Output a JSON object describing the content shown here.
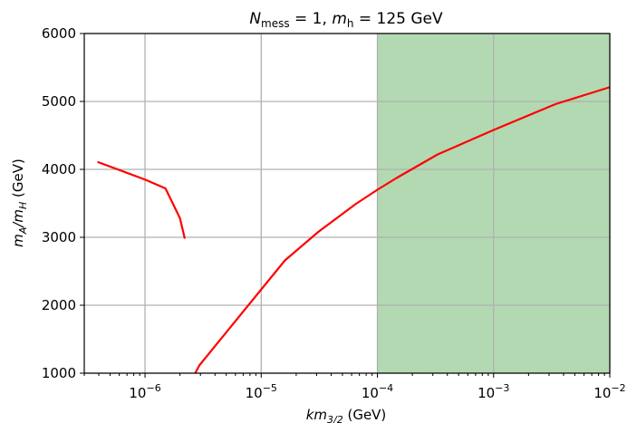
{
  "chart_data": {
    "type": "line",
    "title_parts": {
      "n": "N",
      "n_sub": "mess",
      "mid": " = 1, ",
      "m": "m",
      "m_sub": "h",
      "tail": " = 125 GeV"
    },
    "xlabel_parts": {
      "main": "km",
      "sub": "3/2",
      "unit": " (GeV)"
    },
    "ylabel_parts": {
      "m1": "m",
      "s1": "A",
      "slash": "/",
      "m2": "m",
      "s2": "H",
      "unit": " (GeV)"
    },
    "x_scale": "log",
    "xlim": [
      3e-07,
      0.01
    ],
    "ylim": [
      1000,
      6000
    ],
    "grid": true,
    "x_ticks": [
      {
        "value": 1e-06,
        "base": "10",
        "exp": "−6"
      },
      {
        "value": 1e-05,
        "base": "10",
        "exp": "−5"
      },
      {
        "value": 0.0001,
        "base": "10",
        "exp": "−4"
      },
      {
        "value": 0.001,
        "base": "10",
        "exp": "−3"
      },
      {
        "value": 0.01,
        "base": "10",
        "exp": "−2"
      }
    ],
    "y_ticks": [
      {
        "value": 1000,
        "label": "1000"
      },
      {
        "value": 2000,
        "label": "2000"
      },
      {
        "value": 3000,
        "label": "3000"
      },
      {
        "value": 4000,
        "label": "4000"
      },
      {
        "value": 5000,
        "label": "5000"
      },
      {
        "value": 6000,
        "label": "6000"
      }
    ],
    "shaded_region": {
      "x_from": 0.0001,
      "x_to": 0.01,
      "color": "#b3d9b3"
    },
    "series": [
      {
        "color": "#ff0000",
        "points": [
          [
            3.9e-07,
            4110
          ],
          [
            1e-06,
            3850
          ],
          [
            1.5e-06,
            3720
          ],
          [
            2e-06,
            3280
          ],
          [
            2.2e-06,
            2980
          ]
        ]
      },
      {
        "color": "#ff0000",
        "points": [
          [
            2.7e-06,
            1000
          ],
          [
            2.95e-06,
            1120
          ],
          [
            1.6e-05,
            2660
          ],
          [
            3.1e-05,
            3080
          ],
          [
            6.5e-05,
            3490
          ],
          [
            0.0001,
            3700
          ],
          [
            0.000145,
            3870
          ],
          [
            0.00033,
            4220
          ],
          [
            0.001,
            4580
          ],
          [
            0.0034,
            4960
          ],
          [
            0.01,
            5210
          ]
        ]
      }
    ]
  }
}
